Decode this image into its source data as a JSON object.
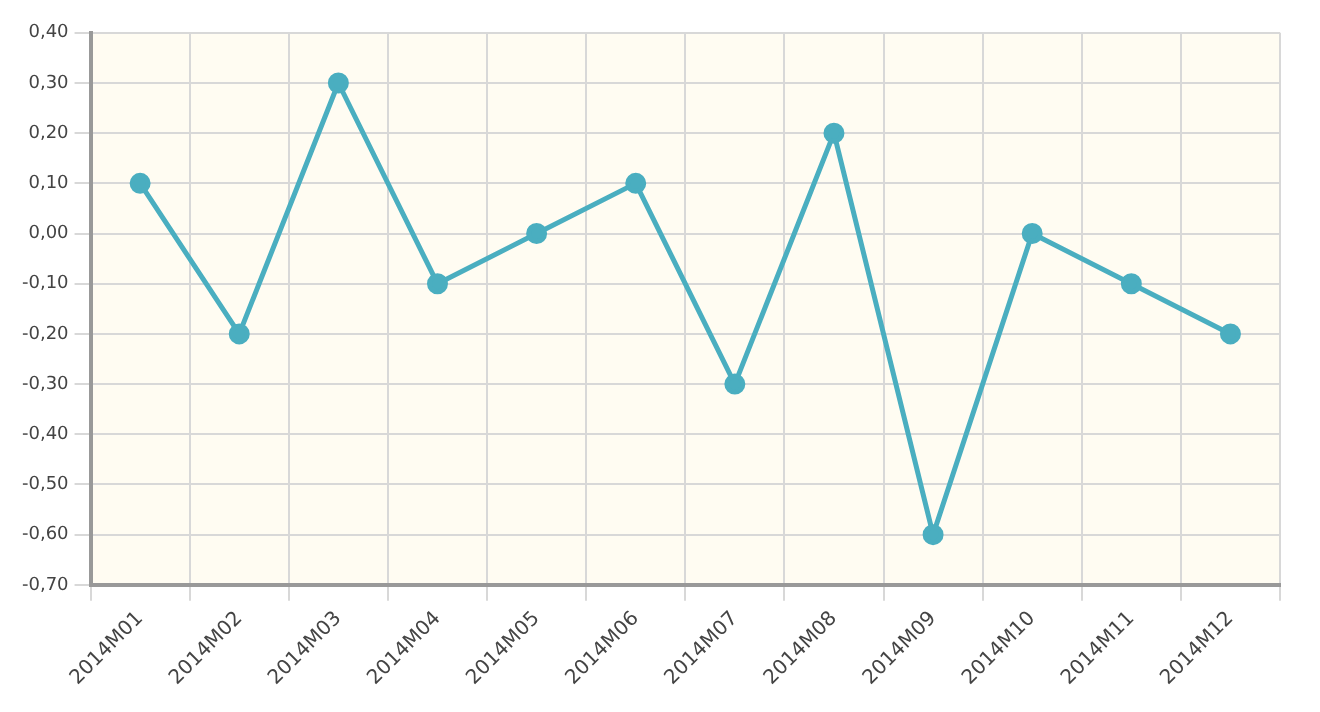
{
  "chart_data": {
    "type": "line",
    "categories": [
      "2014M01",
      "2014M02",
      "2014M03",
      "2014M04",
      "2014M05",
      "2014M06",
      "2014M07",
      "2014M08",
      "2014M09",
      "2014M10",
      "2014M11",
      "2014M12"
    ],
    "series": [
      {
        "color": "#4aaec0",
        "values": [
          0.1,
          -0.2,
          0.3,
          -0.1,
          0,
          0.1,
          -0.3,
          0.2,
          -0.6,
          0,
          -0.1,
          -0.2
        ]
      }
    ],
    "ylim": [
      -0.7,
      0.4
    ],
    "yticks": [
      {
        "value": -0.7,
        "label": "-0,70"
      },
      {
        "value": -0.6,
        "label": "-0,60"
      },
      {
        "value": -0.5,
        "label": "-0,50"
      },
      {
        "value": -0.4,
        "label": "-0,40"
      },
      {
        "value": -0.3,
        "label": "-0,30"
      },
      {
        "value": -0.2,
        "label": "-0,20"
      },
      {
        "value": -0.1,
        "label": "-0,10"
      },
      {
        "value": 0,
        "label": "0,00"
      },
      {
        "value": 0.1,
        "label": "0,10"
      },
      {
        "value": 0.2,
        "label": "0,20"
      },
      {
        "value": 0.3,
        "label": "0,30"
      },
      {
        "value": 0.4,
        "label": "0,40"
      }
    ],
    "grid": true,
    "marker": "circle",
    "line_style": "solid",
    "legend": false
  }
}
